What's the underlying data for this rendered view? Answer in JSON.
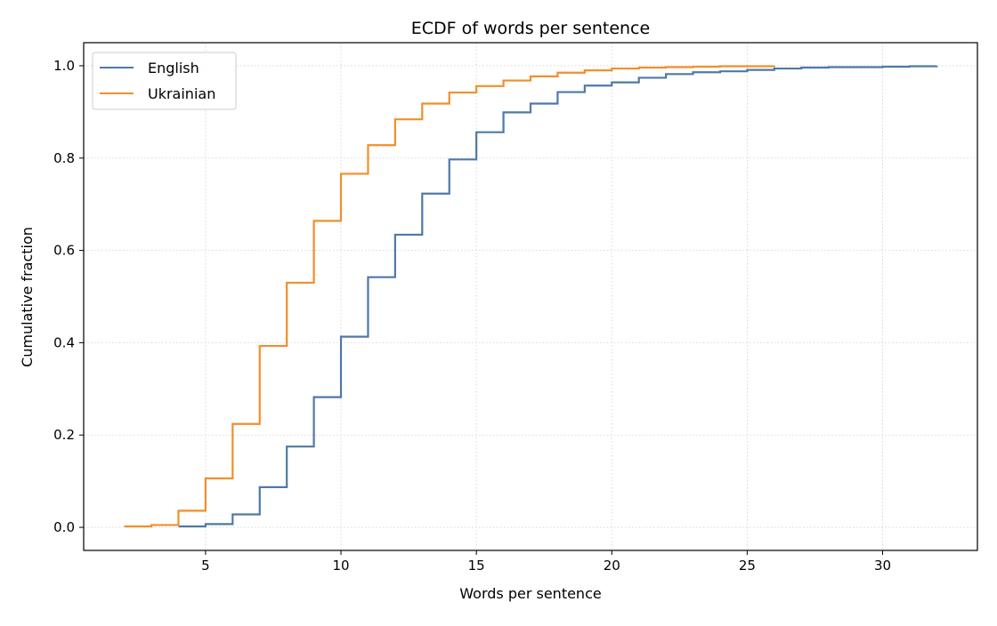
{
  "chart_data": {
    "type": "line",
    "step": true,
    "title": "ECDF of words per sentence",
    "xlabel": "Words per sentence",
    "ylabel": "Cumulative fraction",
    "xlim": [
      0.5,
      33.5
    ],
    "ylim": [
      -0.05,
      1.05
    ],
    "xticks": [
      5,
      10,
      15,
      20,
      25,
      30
    ],
    "yticks": [
      0.0,
      0.2,
      0.4,
      0.6,
      0.8,
      1.0
    ],
    "xtick_labels": [
      "5",
      "10",
      "15",
      "20",
      "25",
      "30"
    ],
    "ytick_labels": [
      "0.0",
      "0.2",
      "0.4",
      "0.6",
      "0.8",
      "1.0"
    ],
    "grid": true,
    "legend_position": "top-left",
    "series": [
      {
        "name": "English",
        "color": "#4e79a7",
        "x": [
          4,
          5,
          6,
          7,
          8,
          9,
          10,
          11,
          12,
          13,
          14,
          15,
          16,
          17,
          18,
          19,
          20,
          21,
          22,
          23,
          24,
          25,
          26,
          27,
          28,
          29,
          30,
          31,
          32
        ],
        "y": [
          0.002,
          0.007,
          0.028,
          0.087,
          0.175,
          0.282,
          0.413,
          0.542,
          0.634,
          0.723,
          0.797,
          0.856,
          0.899,
          0.918,
          0.943,
          0.957,
          0.964,
          0.974,
          0.982,
          0.986,
          0.988,
          0.991,
          0.994,
          0.996,
          0.997,
          0.997,
          0.998,
          0.999,
          1.0
        ]
      },
      {
        "name": "Ukrainian",
        "color": "#f28e2b",
        "x": [
          2,
          3,
          4,
          5,
          6,
          7,
          8,
          9,
          10,
          11,
          12,
          13,
          14,
          15,
          16,
          17,
          18,
          19,
          20,
          21,
          22,
          23,
          24,
          25,
          26
        ],
        "y": [
          0.002,
          0.005,
          0.036,
          0.106,
          0.224,
          0.393,
          0.53,
          0.664,
          0.766,
          0.828,
          0.884,
          0.918,
          0.942,
          0.956,
          0.968,
          0.977,
          0.985,
          0.99,
          0.994,
          0.996,
          0.997,
          0.998,
          0.999,
          0.999,
          1.0
        ]
      }
    ]
  }
}
